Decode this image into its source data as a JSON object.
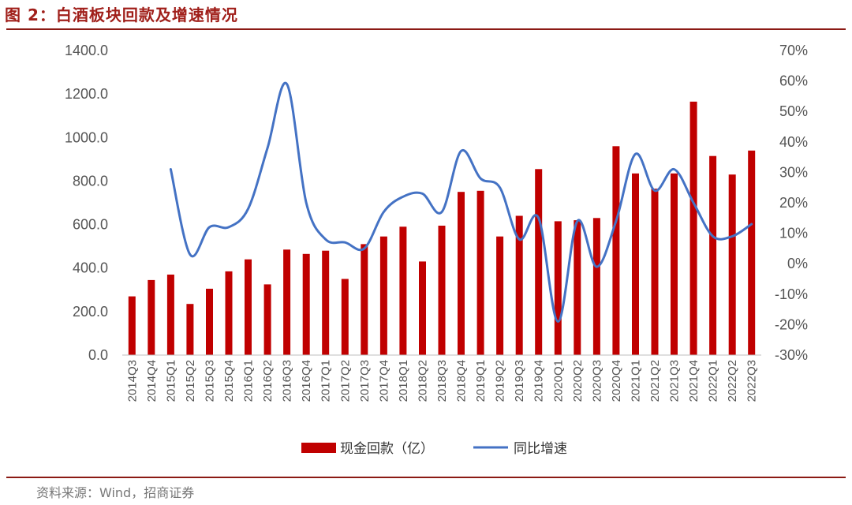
{
  "figure": {
    "title": "图 2：白酒板块回款及增速情况",
    "source": "资料来源：Wind，招商证券"
  },
  "chart_data": {
    "type": "bar+line",
    "categories": [
      "2014Q3",
      "2014Q4",
      "2015Q1",
      "2015Q2",
      "2015Q3",
      "2015Q4",
      "2016Q1",
      "2016Q2",
      "2016Q3",
      "2016Q4",
      "2017Q1",
      "2017Q2",
      "2017Q3",
      "2017Q4",
      "2018Q1",
      "2018Q2",
      "2018Q3",
      "2018Q4",
      "2019Q1",
      "2019Q2",
      "2019Q3",
      "2019Q4",
      "2020Q1",
      "2020Q2",
      "2020Q3",
      "2020Q4",
      "2021Q1",
      "2021Q2",
      "2021Q3",
      "2021Q4",
      "2022Q1",
      "2022Q2",
      "2022Q3"
    ],
    "series": [
      {
        "name": "现金回款（亿）",
        "type": "bar",
        "axis": "left",
        "color": "#c00000",
        "values": [
          270,
          345,
          370,
          235,
          305,
          385,
          440,
          325,
          485,
          465,
          480,
          350,
          510,
          545,
          590,
          430,
          595,
          750,
          755,
          545,
          640,
          855,
          615,
          620,
          630,
          960,
          835,
          765,
          835,
          1165,
          915,
          830,
          940
        ]
      },
      {
        "name": "同比增速",
        "type": "line",
        "axis": "right",
        "color": "#4472c4",
        "values": [
          null,
          null,
          31,
          3,
          12,
          12,
          18,
          38,
          59,
          20,
          8,
          7,
          5,
          17,
          22,
          23,
          17,
          37,
          28,
          25,
          8,
          15,
          -19,
          14,
          -1,
          14,
          36,
          24,
          31,
          20,
          9,
          9,
          13
        ]
      }
    ],
    "yleft": {
      "min": 0,
      "max": 1400,
      "step": 200,
      "ticks": [
        "0.0",
        "200.0",
        "400.0",
        "600.0",
        "800.0",
        "1000.0",
        "1200.0",
        "1400.0"
      ]
    },
    "yright": {
      "min": -30,
      "max": 70,
      "step": 10,
      "ticks": [
        "-30%",
        "-20%",
        "-10%",
        "0%",
        "10%",
        "20%",
        "30%",
        "40%",
        "50%",
        "60%",
        "70%"
      ]
    },
    "legend": {
      "position": "bottom",
      "items": [
        {
          "label": "现金回款（亿）",
          "kind": "bar",
          "color": "#c00000"
        },
        {
          "label": "同比增速",
          "kind": "line",
          "color": "#4472c4"
        }
      ]
    },
    "grid": false
  }
}
